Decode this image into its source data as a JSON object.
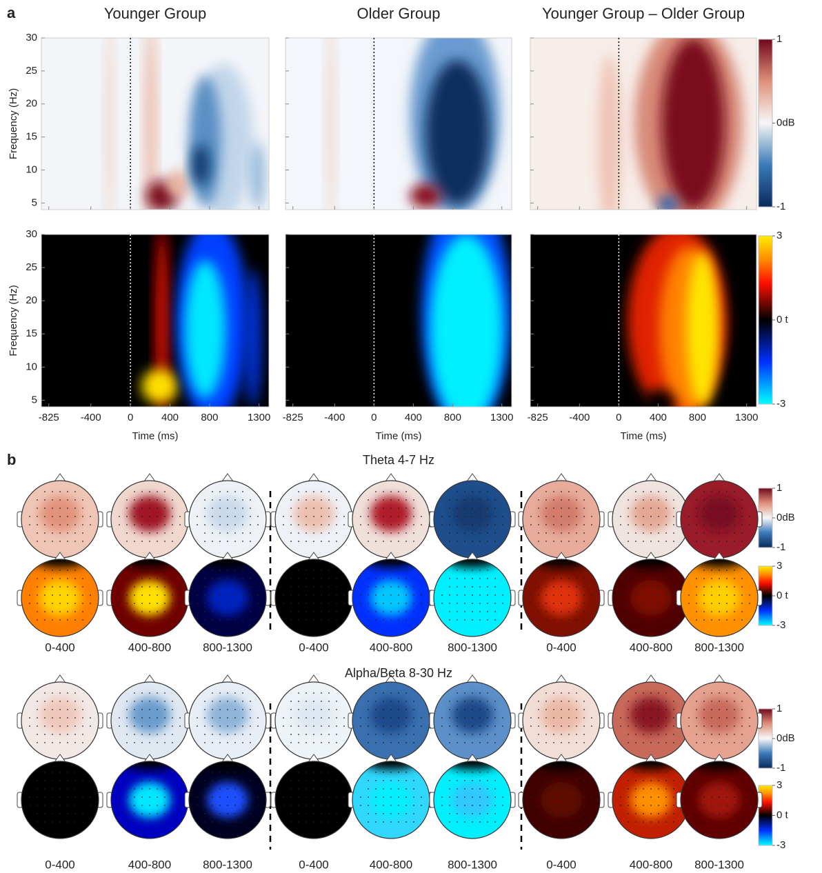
{
  "panel_a": {
    "label": "a",
    "titles": [
      "Younger Group",
      "Older Group",
      "Younger Group – Older Group"
    ],
    "y_label": "Frequency (Hz)",
    "x_label": "Time (ms)",
    "xlim": [
      -900,
      1400
    ],
    "xticks": [
      -825,
      -400,
      0,
      400,
      800,
      1300
    ],
    "ylim": [
      4,
      30
    ],
    "yticks": [
      5,
      10,
      15,
      20,
      25,
      30
    ]
  },
  "panel_b": {
    "label": "b",
    "sections": [
      {
        "title": "Theta 4-7 Hz",
        "windows": [
          "0-400",
          "400-800",
          "800-1300"
        ]
      },
      {
        "title": "Alpha/Beta 8-30 Hz",
        "windows": [
          "0-400",
          "400-800",
          "800-1300"
        ]
      }
    ]
  },
  "color_scales": {
    "power": {
      "lim": [
        -1,
        1
      ],
      "ticks": [
        1,
        {
          "value": 0,
          "label": "0dB"
        },
        -1
      ]
    },
    "t": {
      "lim": [
        -3,
        3
      ],
      "ticks": [
        3,
        {
          "value": 0,
          "label": "0 t"
        },
        -3
      ]
    }
  }
}
